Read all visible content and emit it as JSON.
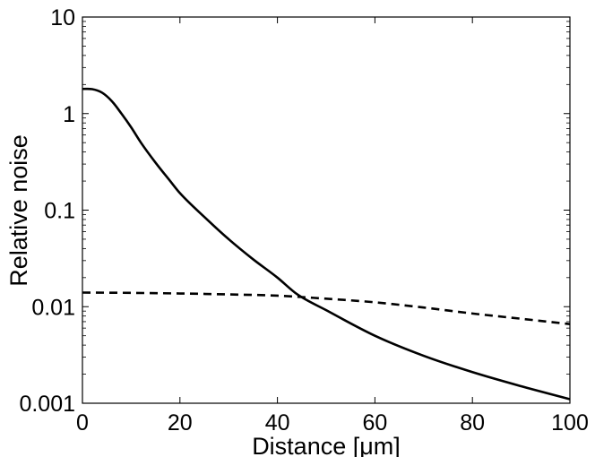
{
  "chart_data": {
    "type": "line",
    "title": "",
    "xlabel": "Distance [μm]",
    "ylabel": "Relative noise",
    "xlim": [
      0,
      100
    ],
    "ylim": [
      0.001,
      10
    ],
    "yscale": "log",
    "grid": false,
    "legend": "none",
    "x_ticks": [
      "0",
      "20",
      "40",
      "60",
      "80",
      "100"
    ],
    "y_ticks": [
      "0.001",
      "0.01",
      "0.1",
      "1",
      "10"
    ],
    "series": [
      {
        "style": "solid",
        "color": "#000000",
        "x": [
          0,
          2,
          4,
          6,
          8,
          10,
          12,
          15,
          18,
          20,
          25,
          30,
          35,
          40,
          44,
          50,
          60,
          70,
          80,
          90,
          100
        ],
        "y": [
          1.8,
          1.79,
          1.65,
          1.35,
          1.0,
          0.72,
          0.5,
          0.31,
          0.2,
          0.15,
          0.085,
          0.05,
          0.031,
          0.02,
          0.0135,
          0.0092,
          0.005,
          0.0031,
          0.0021,
          0.0015,
          0.0011
        ]
      },
      {
        "style": "dashed",
        "color": "#000000",
        "x": [
          0,
          10,
          20,
          30,
          40,
          50,
          60,
          70,
          80,
          90,
          100
        ],
        "y": [
          0.014,
          0.0139,
          0.0137,
          0.0134,
          0.013,
          0.0121,
          0.0111,
          0.0098,
          0.0085,
          0.0075,
          0.0066
        ]
      }
    ]
  }
}
